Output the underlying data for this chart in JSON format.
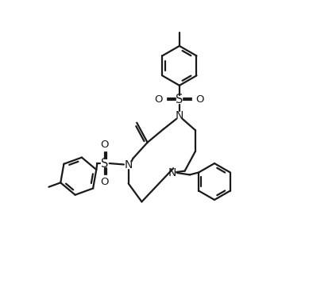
{
  "background_color": "#ffffff",
  "line_color": "#1a1a1a",
  "lw": 1.6,
  "figsize": [
    4.23,
    3.67
  ],
  "dpi": 100,
  "xlim": [
    -0.5,
    6.0
  ],
  "ylim": [
    -2.8,
    4.8
  ]
}
